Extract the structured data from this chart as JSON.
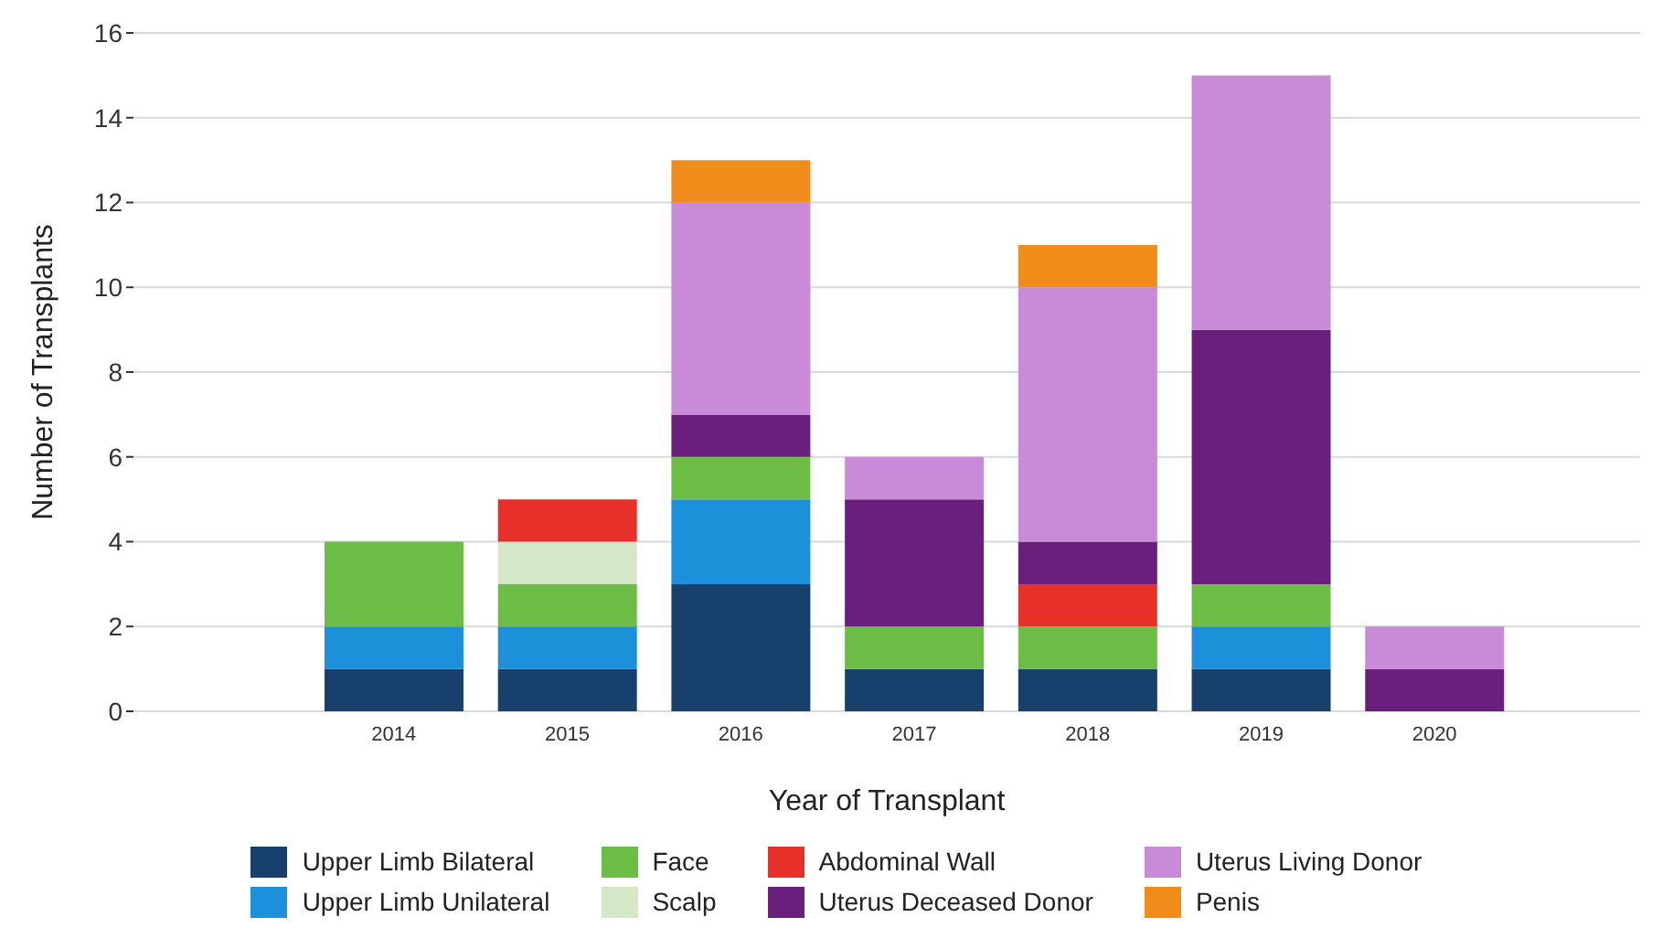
{
  "chart_data": {
    "type": "bar",
    "stacked": true,
    "xlabel": "Year of Transplant",
    "ylabel": "Number of Transplants",
    "categories": [
      "2014",
      "2015",
      "2016",
      "2017",
      "2018",
      "2019",
      "2020"
    ],
    "ylim": [
      0,
      16
    ],
    "yticks": [
      0,
      2,
      4,
      6,
      8,
      10,
      12,
      14,
      16
    ],
    "grid": "y",
    "legend": "bottom",
    "series": [
      {
        "name": "Upper Limb Bilateral",
        "color": "#17406d",
        "values": [
          1,
          1,
          3,
          1,
          1,
          1,
          null
        ]
      },
      {
        "name": "Upper Limb Unilateral",
        "color": "#1c90d8",
        "values": [
          1,
          1,
          2,
          null,
          null,
          1,
          null
        ]
      },
      {
        "name": "Face",
        "color": "#6cbd45",
        "values": [
          2,
          1,
          1,
          1,
          1,
          1,
          null
        ]
      },
      {
        "name": "Scalp",
        "color": "#d4e8c8",
        "values": [
          null,
          1,
          null,
          null,
          null,
          null,
          null
        ]
      },
      {
        "name": "Abdominal Wall",
        "color": "#e8302a",
        "values": [
          null,
          1,
          null,
          null,
          1,
          null,
          null
        ]
      },
      {
        "name": "Uterus Deceased Donor",
        "color": "#6b1f7c",
        "values": [
          null,
          null,
          1,
          3,
          1,
          6,
          1
        ]
      },
      {
        "name": "Uterus Living Donor",
        "color": "#c98ad8",
        "values": [
          null,
          null,
          5,
          1,
          6,
          6,
          1
        ]
      },
      {
        "name": "Penis",
        "color": "#f08c1a",
        "values": [
          null,
          null,
          1,
          null,
          1,
          null,
          null
        ]
      }
    ]
  }
}
